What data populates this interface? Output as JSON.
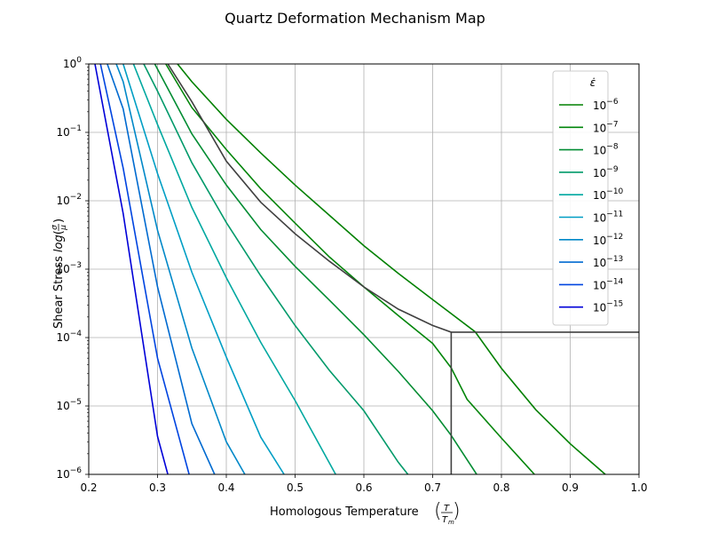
{
  "chart_data": {
    "type": "line",
    "title": "Quartz Deformation Mechanism Map",
    "xlabel": "Homologous Temperature",
    "xlabel_math": {
      "num": "T",
      "den": "T",
      "den_sub": "m"
    },
    "ylabel": "Shear Stress log(σ/μ)",
    "ylabel_plain": "Shear Stress",
    "ylabel_func": "log",
    "ylabel_frac": {
      "num": "σ",
      "den": "μ"
    },
    "xlim": [
      0.2,
      1.0
    ],
    "ylim_log10": [
      -6,
      0
    ],
    "y_scale": "log",
    "grid": true,
    "legend_placement": "top-right",
    "legend_title": "ε̇",
    "x_ticks": [
      "0.2",
      "0.3",
      "0.4",
      "0.5",
      "0.6",
      "0.7",
      "0.8",
      "0.9",
      "1.0"
    ],
    "y_ticks": [
      {
        "base": "10",
        "exp": "0",
        "val": 0
      },
      {
        "base": "10",
        "exp": "−1",
        "val": -1
      },
      {
        "base": "10",
        "exp": "−2",
        "val": -2
      },
      {
        "base": "10",
        "exp": "−3",
        "val": -3
      },
      {
        "base": "10",
        "exp": "−4",
        "val": -4
      },
      {
        "base": "10",
        "exp": "−5",
        "val": -5
      },
      {
        "base": "10",
        "exp": "−6",
        "val": -6
      }
    ],
    "series": [
      {
        "name": "10^-6",
        "base": "10",
        "exp": "−6",
        "color": "#008000",
        "x": [
          0.329,
          0.35,
          0.4,
          0.45,
          0.5,
          0.55,
          0.6,
          0.65,
          0.7,
          0.762,
          0.8,
          0.85,
          0.9,
          0.951
        ],
        "y": [
          1,
          0.55,
          0.155,
          0.05,
          0.017,
          0.0061,
          0.0022,
          0.00087,
          0.00036,
          0.000121,
          3.55e-05,
          8.8e-06,
          2.8e-06,
          1e-06
        ]
      },
      {
        "name": "10^-7",
        "base": "10",
        "exp": "−7",
        "color": "#00850a",
        "x": [
          0.312,
          0.35,
          0.4,
          0.45,
          0.5,
          0.55,
          0.6,
          0.65,
          0.7,
          0.727,
          0.75,
          0.8,
          0.848
        ],
        "y": [
          1,
          0.23,
          0.056,
          0.015,
          0.0047,
          0.0015,
          0.00055,
          0.00021,
          8.2e-05,
          3.6e-05,
          1.25e-05,
          3.4e-06,
          1e-06
        ]
      },
      {
        "name": "10^-8",
        "base": "10",
        "exp": "−8",
        "color": "#008c32",
        "x": [
          0.296,
          0.35,
          0.4,
          0.45,
          0.5,
          0.55,
          0.6,
          0.65,
          0.7,
          0.727,
          0.764
        ],
        "y": [
          1,
          0.095,
          0.017,
          0.0038,
          0.0011,
          0.00035,
          0.00011,
          3.2e-05,
          8.5e-06,
          3.7e-06,
          1e-06
        ]
      },
      {
        "name": "10^-9",
        "base": "10",
        "exp": "−9",
        "color": "#009a6a",
        "x": [
          0.28,
          0.3,
          0.35,
          0.4,
          0.45,
          0.5,
          0.55,
          0.6,
          0.65,
          0.664
        ],
        "y": [
          1,
          0.4,
          0.036,
          0.0048,
          0.0008,
          0.00015,
          3.3e-05,
          8.5e-06,
          1.5e-06,
          1e-06
        ]
      },
      {
        "name": "10^-10",
        "base": "10",
        "exp": "−10",
        "color": "#00a8a0",
        "x": [
          0.265,
          0.3,
          0.35,
          0.4,
          0.45,
          0.5,
          0.559
        ],
        "y": [
          1,
          0.13,
          0.008,
          0.00075,
          8.5e-05,
          1.2e-05,
          1e-06
        ]
      },
      {
        "name": "10^-11",
        "base": "10",
        "exp": "−11",
        "color": "#009ec4",
        "x": [
          0.25,
          0.3,
          0.35,
          0.4,
          0.45,
          0.484
        ],
        "y": [
          1,
          0.025,
          0.0009,
          5.2e-05,
          3.5e-06,
          1e-06
        ]
      },
      {
        "name": "10^-12",
        "base": "10",
        "exp": "−12",
        "color": "#0088c8",
        "x": [
          0.24,
          0.25,
          0.3,
          0.35,
          0.4,
          0.427
        ],
        "y": [
          1,
          0.55,
          0.0037,
          7e-05,
          3e-06,
          1e-06
        ]
      },
      {
        "name": "10^-13",
        "base": "10",
        "exp": "−13",
        "color": "#006ad0",
        "x": [
          0.227,
          0.25,
          0.3,
          0.35,
          0.383
        ],
        "y": [
          1,
          0.22,
          0.00055,
          5.5e-06,
          1e-06
        ]
      },
      {
        "name": "10^-14",
        "base": "10",
        "exp": "−14",
        "color": "#0044e0",
        "x": [
          0.217,
          0.25,
          0.3,
          0.346
        ],
        "y": [
          1,
          0.03,
          5e-05,
          1e-06
        ]
      },
      {
        "name": "10^-15",
        "base": "10",
        "exp": "−15",
        "color": "#0000d8",
        "x": [
          0.209,
          0.25,
          0.3,
          0.315
        ],
        "y": [
          1,
          0.0065,
          3.6e-06,
          1e-06
        ]
      }
    ],
    "boundaries": [
      {
        "color": "#404040",
        "x": [
          0.315,
          0.35,
          0.4,
          0.45,
          0.5,
          0.55,
          0.6,
          0.65,
          0.7,
          0.727,
          1.0
        ],
        "y": [
          1,
          0.28,
          0.038,
          0.0095,
          0.0033,
          0.0013,
          0.00055,
          0.00026,
          0.00015,
          0.00012,
          0.00012
        ]
      },
      {
        "color": "#404040",
        "x": [
          0.727,
          0.727
        ],
        "y": [
          0.00012,
          1e-06
        ]
      }
    ]
  }
}
